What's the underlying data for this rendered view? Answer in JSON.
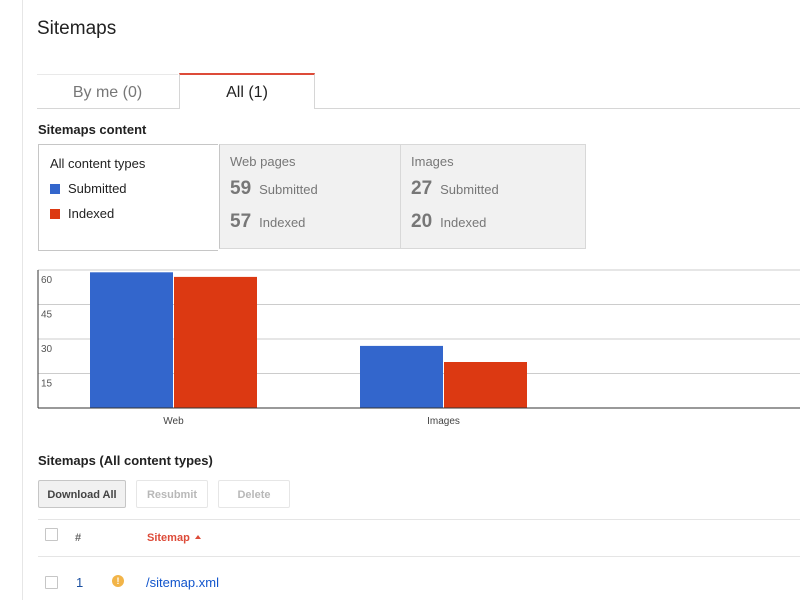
{
  "page": {
    "title": "Sitemaps"
  },
  "tabs": [
    {
      "label": "By me (0)",
      "active": false
    },
    {
      "label": "All (1)",
      "active": true
    }
  ],
  "colors": {
    "submitted": "#3366cc",
    "indexed": "#dc3912",
    "accent": "#dd4b39",
    "link": "#1155cc"
  },
  "content_section": {
    "heading": "Sitemaps content",
    "all_types": {
      "title": "All content types",
      "legend": [
        {
          "label": "Submitted"
        },
        {
          "label": "Indexed"
        }
      ]
    },
    "cards": [
      {
        "title": "Web pages",
        "submitted": "59",
        "submitted_label": "Submitted",
        "indexed": "57",
        "indexed_label": "Indexed"
      },
      {
        "title": "Images",
        "submitted": "27",
        "submitted_label": "Submitted",
        "indexed": "20",
        "indexed_label": "Indexed"
      }
    ]
  },
  "chart_data": {
    "type": "bar",
    "categories": [
      "Web",
      "Images"
    ],
    "series": [
      {
        "name": "Submitted",
        "values": [
          59,
          27
        ]
      },
      {
        "name": "Indexed",
        "values": [
          57,
          20
        ]
      }
    ],
    "yticks": [
      15,
      30,
      45,
      60
    ],
    "ylim": [
      0,
      60
    ],
    "grid": true,
    "legend": "none"
  },
  "list_section": {
    "heading": "Sitemaps (All content types)",
    "buttons": {
      "download_all": "Download All",
      "resubmit": "Resubmit",
      "delete": "Delete"
    },
    "columns": {
      "number": "#",
      "sitemap": "Sitemap"
    },
    "rows": [
      {
        "number": "1",
        "warning_icon": "!",
        "sitemap": "/sitemap.xml"
      }
    ]
  }
}
